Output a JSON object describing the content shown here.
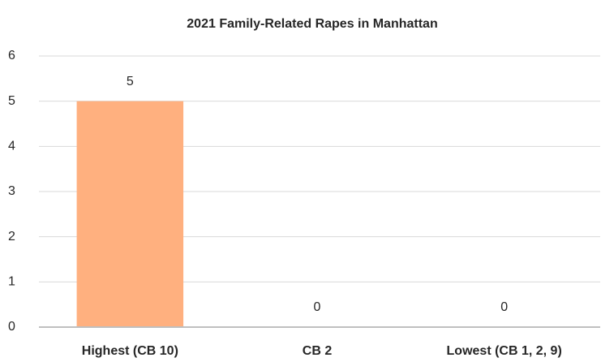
{
  "chart_data": {
    "type": "bar",
    "title": "2021 Family-Related Rapes in Manhattan",
    "categories": [
      "Highest (CB 10)",
      "CB 2",
      "Lowest (CB 1, 2, 9)"
    ],
    "values": [
      5,
      0,
      0
    ],
    "color": "#ffb07f",
    "ylim": [
      0,
      6
    ],
    "yticks": [
      0,
      1,
      2,
      3,
      4,
      5,
      6
    ],
    "grid": true
  }
}
